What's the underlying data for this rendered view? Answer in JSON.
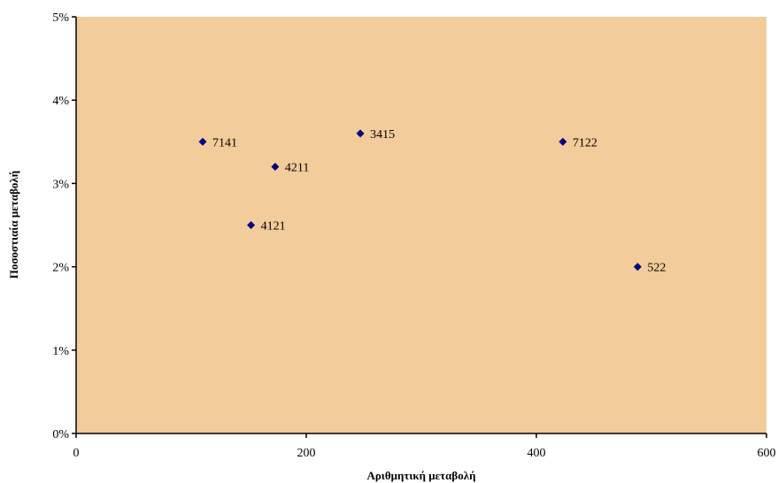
{
  "chart_data": {
    "type": "scatter",
    "title": "",
    "xlabel": "Αριθμητική μεταβολή",
    "ylabel": "Ποσοστιαία μεταβολή",
    "xlim": [
      0,
      600
    ],
    "ylim": [
      0,
      5
    ],
    "x_ticks": [
      0,
      200,
      400,
      600
    ],
    "y_ticks": [
      0,
      1,
      2,
      3,
      4,
      5
    ],
    "y_tick_suffix": "%",
    "grid": false,
    "legend": "none",
    "colors": {
      "plot_background": "#F2CC9B",
      "marker": "#000080",
      "axis": "#000000"
    },
    "points": [
      {
        "label": "7141",
        "x": 110,
        "y": 3.5
      },
      {
        "label": "4211",
        "x": 173,
        "y": 3.2
      },
      {
        "label": "4121",
        "x": 152,
        "y": 2.5
      },
      {
        "label": "3415",
        "x": 247,
        "y": 3.6
      },
      {
        "label": "7122",
        "x": 423,
        "y": 3.5
      },
      {
        "label": "522",
        "x": 488,
        "y": 2.0
      }
    ]
  }
}
